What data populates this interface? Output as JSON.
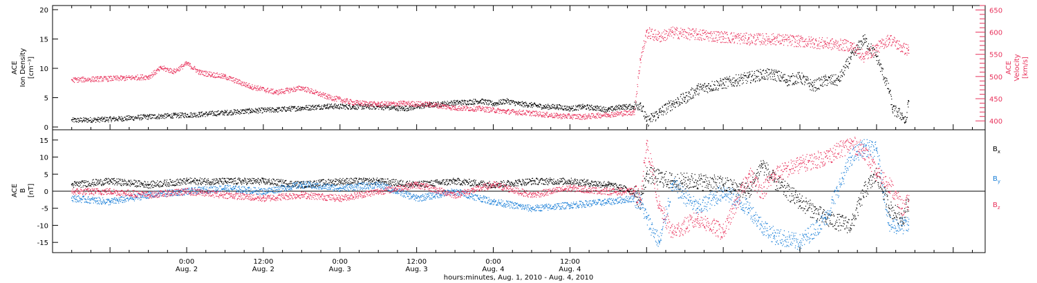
{
  "chart_data": [
    {
      "type": "scatter",
      "panel": "top",
      "title": "",
      "ylabel_left": [
        "ACE",
        "Ion Density",
        "[cm⁻³]"
      ],
      "ylabel_right": [
        "ACE",
        "Velocity",
        "[km/s]"
      ],
      "ylim_left": [
        0,
        20
      ],
      "ylim_right": [
        380,
        660
      ],
      "yticks_left": [
        "0",
        "5",
        "10",
        "15",
        "20"
      ],
      "yticks_right": [
        "400",
        "450",
        "500",
        "550",
        "600",
        "650"
      ],
      "colors": {
        "density": "#000000",
        "velocity": "#e8305a"
      },
      "series": [
        {
          "axis": "left",
          "color": "#000000",
          "x_hours": [
            -18,
            -14,
            -10,
            -6,
            -2,
            2,
            6,
            10,
            14,
            18,
            22,
            26,
            30,
            34,
            38,
            40,
            42,
            44,
            46,
            48,
            50,
            52,
            54,
            56,
            58,
            60,
            62,
            64,
            66,
            68,
            70,
            71,
            72,
            74,
            76,
            78,
            80,
            82,
            84,
            86,
            88,
            90,
            92,
            94,
            96,
            98,
            100,
            102,
            104,
            106,
            108,
            110,
            110.5,
            112,
            112.5,
            113
          ],
          "values": [
            1.2,
            1.3,
            1.5,
            1.8,
            2.0,
            2.2,
            2.5,
            2.8,
            3.0,
            3.3,
            3.6,
            3.5,
            3.5,
            3.2,
            3.8,
            4.0,
            4.2,
            4.3,
            4.5,
            4.0,
            4.5,
            4.0,
            3.8,
            3.5,
            3.5,
            3.2,
            3.5,
            3.3,
            3.0,
            3.5,
            3.5,
            4.0,
            1.0,
            2.5,
            4.0,
            5.0,
            6.5,
            7.0,
            7.5,
            8.0,
            8.5,
            9.0,
            9.0,
            8.0,
            8.5,
            7.0,
            8.0,
            8.0,
            12.0,
            15.0,
            12.0,
            6.0,
            3.0,
            2.0,
            0.8,
            4.5
          ]
        },
        {
          "axis": "right",
          "color": "#e8305a",
          "x_hours": [
            -18,
            -14,
            -10,
            -6,
            -4,
            -2,
            0,
            2,
            4,
            6,
            10,
            14,
            18,
            22,
            26,
            30,
            34,
            38,
            42,
            46,
            50,
            54,
            58,
            62,
            66,
            70,
            71,
            72,
            74,
            76,
            80,
            84,
            88,
            92,
            96,
            100,
            104,
            106,
            108,
            110,
            112,
            113
          ],
          "values": [
            493,
            495,
            497,
            500,
            520,
            512,
            530,
            510,
            505,
            500,
            478,
            465,
            475,
            455,
            442,
            438,
            440,
            438,
            430,
            428,
            422,
            418,
            412,
            410,
            415,
            420,
            540,
            600,
            590,
            600,
            595,
            590,
            585,
            585,
            580,
            575,
            570,
            545,
            565,
            585,
            565,
            560
          ]
        }
      ]
    },
    {
      "type": "scatter",
      "panel": "bottom",
      "title": "",
      "ylabel_left": [
        "ACE",
        "B",
        "[nT]"
      ],
      "ylim": [
        -18,
        18
      ],
      "yticks": [
        "-15",
        "-10",
        "-5",
        "0",
        "5",
        "10",
        "15"
      ],
      "xlabel": "hours:minutes, Aug.  1, 2010 - Aug.  4, 2010",
      "xticks": [
        {
          "time": "0:00",
          "date": "Aug. 2"
        },
        {
          "time": "12:00",
          "date": "Aug. 2"
        },
        {
          "time": "0:00",
          "date": "Aug. 3"
        },
        {
          "time": "12:00",
          "date": "Aug. 3"
        },
        {
          "time": "0:00",
          "date": "Aug. 4"
        },
        {
          "time": "12:00",
          "date": "Aug. 4"
        }
      ],
      "xlim_hours": [
        -21,
        125
      ],
      "legend": [
        {
          "label": "B",
          "sub": "x",
          "color": "#000000"
        },
        {
          "label": "B",
          "sub": "y",
          "color": "#1a7fd8"
        },
        {
          "label": "B",
          "sub": "z",
          "color": "#e8305a"
        }
      ],
      "series": [
        {
          "name": "Bx",
          "color": "#000000",
          "x_hours": [
            -18,
            -12,
            -6,
            0,
            6,
            12,
            18,
            24,
            30,
            36,
            42,
            48,
            54,
            60,
            66,
            70,
            71,
            72,
            76,
            80,
            84,
            88,
            90,
            92,
            96,
            100,
            104,
            106,
            108,
            110,
            112,
            113
          ],
          "values": [
            2,
            3,
            2,
            3,
            3,
            3,
            2,
            3,
            3,
            2,
            3,
            2,
            3,
            3,
            2,
            0,
            -3,
            5,
            3,
            3,
            2,
            0,
            8,
            3,
            -3,
            -8,
            -10,
            0,
            5,
            -5,
            -8,
            -3
          ]
        },
        {
          "name": "By",
          "color": "#1a7fd8",
          "x_hours": [
            -18,
            -12,
            -6,
            0,
            6,
            12,
            18,
            24,
            30,
            36,
            42,
            48,
            54,
            60,
            66,
            70,
            71,
            72,
            74,
            76,
            80,
            84,
            88,
            90,
            92,
            96,
            100,
            104,
            106,
            108,
            110,
            112,
            113
          ],
          "values": [
            -2,
            -3,
            -1,
            0,
            1,
            0,
            2,
            1,
            2,
            -2,
            0,
            -3,
            -5,
            -4,
            -3,
            -2,
            -3,
            -8,
            -15,
            2,
            -5,
            0,
            -5,
            -10,
            -13,
            -15,
            -8,
            10,
            13,
            12,
            -10,
            -10,
            -10
          ]
        },
        {
          "name": "Bz",
          "color": "#e8305a",
          "x_hours": [
            -18,
            -12,
            -6,
            0,
            6,
            12,
            18,
            24,
            30,
            36,
            42,
            48,
            54,
            60,
            66,
            70,
            71,
            72,
            74,
            76,
            80,
            84,
            88,
            90,
            92,
            96,
            100,
            104,
            106,
            108,
            110,
            112,
            113
          ],
          "values": [
            0,
            0,
            -1,
            0,
            -1,
            -2,
            -1,
            -2,
            0,
            2,
            -1,
            2,
            -1,
            1,
            0,
            0,
            -2,
            14,
            -5,
            -12,
            -8,
            -12,
            5,
            0,
            5,
            8,
            10,
            14,
            12,
            5,
            2,
            -5,
            -3
          ]
        }
      ]
    }
  ]
}
